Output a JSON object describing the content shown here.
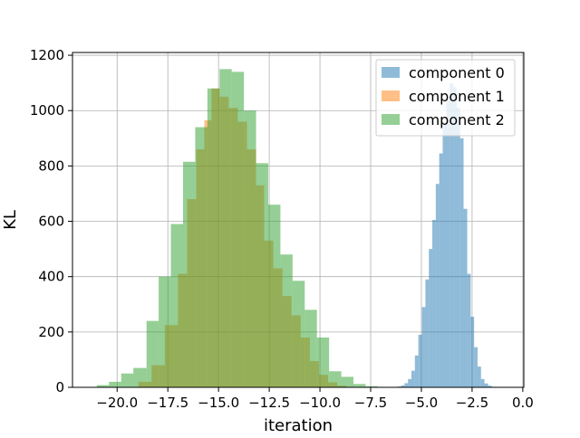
{
  "chart_data": {
    "type": "histogram",
    "title": "",
    "xlabel": "iteration",
    "ylabel": "KL",
    "xlim": [
      -22.2,
      0.05
    ],
    "ylim": [
      0,
      1210
    ],
    "grid": true,
    "legend_position": "top-right",
    "xticks": [
      -20.0,
      -17.5,
      -15.0,
      -12.5,
      -10.0,
      -7.5,
      -5.0,
      -2.5,
      0.0
    ],
    "xtick_labels": [
      "−20.0",
      "−17.5",
      "−15.0",
      "−12.5",
      "−10.0",
      "−7.5",
      "−5.0",
      "−2.5",
      "0.0"
    ],
    "yticks": [
      0,
      200,
      400,
      600,
      800,
      1000,
      1200
    ],
    "ytick_labels": [
      "0",
      "200",
      "400",
      "600",
      "800",
      "1000",
      "1200"
    ],
    "series": [
      {
        "name": "component 0",
        "color": "#1f77b4",
        "opacity": 0.5,
        "bins": [
          [
            -6.35,
            -6.18,
            1
          ],
          [
            -6.18,
            -6.0,
            3
          ],
          [
            -6.0,
            -5.83,
            7
          ],
          [
            -5.83,
            -5.66,
            15
          ],
          [
            -5.66,
            -5.49,
            30
          ],
          [
            -5.49,
            -5.32,
            60
          ],
          [
            -5.32,
            -5.15,
            115
          ],
          [
            -5.15,
            -4.97,
            190
          ],
          [
            -4.97,
            -4.8,
            290
          ],
          [
            -4.8,
            -4.63,
            390
          ],
          [
            -4.63,
            -4.46,
            500
          ],
          [
            -4.46,
            -4.29,
            605
          ],
          [
            -4.29,
            -4.12,
            735
          ],
          [
            -4.12,
            -3.95,
            845
          ],
          [
            -3.95,
            -3.77,
            960
          ],
          [
            -3.77,
            -3.6,
            1035
          ],
          [
            -3.6,
            -3.43,
            1100
          ],
          [
            -3.43,
            -3.26,
            1085
          ],
          [
            -3.26,
            -3.09,
            1010
          ],
          [
            -3.09,
            -2.92,
            900
          ],
          [
            -2.92,
            -2.74,
            645
          ],
          [
            -2.74,
            -2.57,
            410
          ],
          [
            -2.57,
            -2.4,
            255
          ],
          [
            -2.4,
            -2.23,
            145
          ],
          [
            -2.23,
            -2.06,
            75
          ],
          [
            -2.06,
            -1.89,
            30
          ],
          [
            -1.89,
            -1.71,
            14
          ],
          [
            -1.71,
            -1.54,
            6
          ],
          [
            -1.54,
            -1.37,
            2
          ]
        ]
      },
      {
        "name": "component 1",
        "color": "#ff7f0e",
        "opacity": 0.5,
        "bins": [
          [
            -18.95,
            -18.3,
            20
          ],
          [
            -18.3,
            -17.65,
            80
          ],
          [
            -17.65,
            -17.0,
            225
          ],
          [
            -17.0,
            -16.55,
            410
          ],
          [
            -16.55,
            -16.1,
            680
          ],
          [
            -16.1,
            -15.7,
            860
          ],
          [
            -15.7,
            -15.35,
            965
          ],
          [
            -15.35,
            -14.95,
            1080
          ],
          [
            -14.95,
            -14.5,
            1050
          ],
          [
            -14.5,
            -14.05,
            1010
          ],
          [
            -14.05,
            -13.6,
            960
          ],
          [
            -13.6,
            -13.15,
            860
          ],
          [
            -13.15,
            -12.75,
            730
          ],
          [
            -12.75,
            -12.3,
            530
          ],
          [
            -12.3,
            -11.85,
            430
          ],
          [
            -11.85,
            -11.4,
            330
          ],
          [
            -11.4,
            -10.95,
            260
          ],
          [
            -10.95,
            -10.5,
            180
          ],
          [
            -10.5,
            -10.05,
            95
          ],
          [
            -10.05,
            -9.6,
            45
          ],
          [
            -9.6,
            -9.15,
            18
          ],
          [
            -9.15,
            -8.7,
            6
          ]
        ]
      },
      {
        "name": "component 2",
        "color": "#2ca02c",
        "opacity": 0.5,
        "bins": [
          [
            -21.0,
            -20.4,
            8
          ],
          [
            -20.4,
            -19.8,
            20
          ],
          [
            -19.8,
            -19.2,
            50
          ],
          [
            -19.2,
            -18.55,
            70
          ],
          [
            -18.55,
            -17.95,
            240
          ],
          [
            -17.95,
            -17.35,
            400
          ],
          [
            -17.35,
            -16.75,
            590
          ],
          [
            -16.75,
            -16.15,
            815
          ],
          [
            -16.15,
            -15.55,
            940
          ],
          [
            -15.55,
            -14.95,
            1080
          ],
          [
            -14.95,
            -14.35,
            1150
          ],
          [
            -14.35,
            -13.75,
            1140
          ],
          [
            -13.75,
            -13.15,
            1000
          ],
          [
            -13.15,
            -12.55,
            810
          ],
          [
            -12.55,
            -11.95,
            660
          ],
          [
            -11.95,
            -11.35,
            480
          ],
          [
            -11.35,
            -10.75,
            385
          ],
          [
            -10.75,
            -10.15,
            280
          ],
          [
            -10.15,
            -9.55,
            180
          ],
          [
            -9.55,
            -8.95,
            58
          ],
          [
            -8.95,
            -8.35,
            38
          ],
          [
            -8.35,
            -7.75,
            12
          ],
          [
            -7.75,
            -7.15,
            4
          ]
        ]
      }
    ]
  }
}
